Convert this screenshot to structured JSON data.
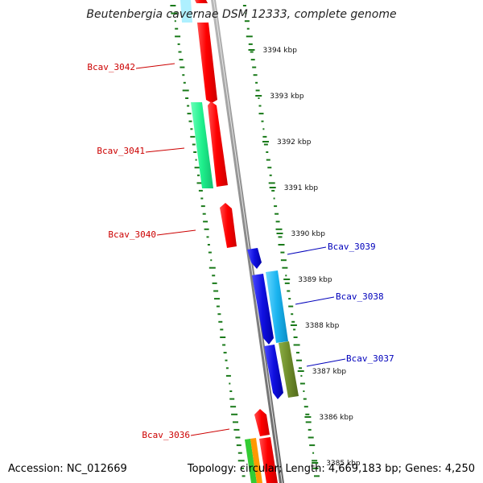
{
  "title": "Beutenbergia cavernae DSM 12333, complete genome",
  "accession": "Accession: NC_012669",
  "summary": "Topology: circular; Length: 4,669,183 bp; Genes: 4,250",
  "scale_ticks": [
    "3394 kbp",
    "3393 kbp",
    "3392 kbp",
    "3391 kbp",
    "3390 kbp",
    "3389 kbp",
    "3388 kbp",
    "3387 kbp",
    "3386 kbp",
    "3385 kbp"
  ],
  "gene_labels": {
    "reverse": [
      "Bcav_3042",
      "Bcav_3041",
      "Bcav_3040",
      "Bcav_3036"
    ],
    "forward": [
      "Bcav_3039",
      "Bcav_3038",
      "Bcav_3037"
    ]
  },
  "colors": {
    "reverse_label": "#cc0000",
    "forward_label": "#0000bb",
    "backbone": "#888888",
    "gc_ticks": "#1a7a1a",
    "red_gene": "#ff0000",
    "spring_gene": "#1ef08c",
    "blue_gene": "#1010e0",
    "cyan_gene": "#1ab4f0",
    "olive_gene": "#6e8c2a",
    "orange_gene": "#ff9900",
    "green_gene": "#33cc33",
    "light_cyan_gene": "#aef0ff"
  }
}
